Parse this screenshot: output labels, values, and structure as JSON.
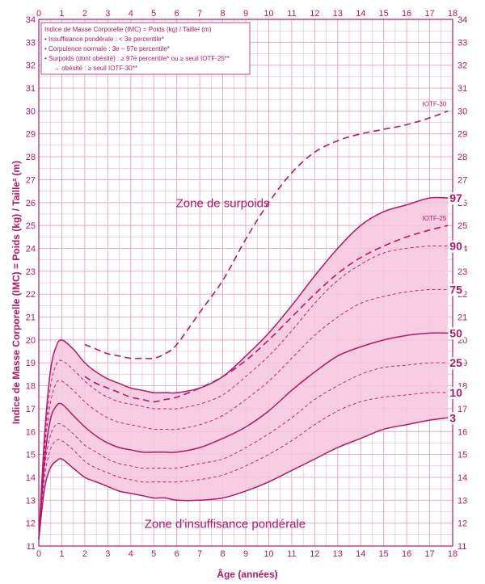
{
  "chart_data": {
    "type": "line",
    "xlabel": "Âge (années)",
    "ylabel": "Indice de Masse Corporelle (IMC) = Poids (kg) / Taille² (m)",
    "xlim": [
      0,
      18
    ],
    "ylim": [
      11,
      34
    ],
    "x_ticks": [
      0,
      1,
      2,
      3,
      4,
      5,
      6,
      7,
      8,
      9,
      10,
      11,
      12,
      13,
      14,
      15,
      16,
      17,
      18
    ],
    "y_ticks": [
      11,
      12,
      13,
      14,
      15,
      16,
      17,
      18,
      19,
      20,
      21,
      22,
      23,
      24,
      25,
      26,
      27,
      28,
      29,
      30,
      31,
      32,
      33,
      34
    ],
    "legend": {
      "placement": "top-left",
      "lines": [
        "Indice de Masse Corporelle (IMC) = Poids (kg) / Taille² (m)",
        "• Insuffisance pondérale : < 3e percentile*",
        "• Corpulence normale : 3e – 97e percentile*",
        "• Surpoids (dont obésité) : ≥ 97e percentile* ou ≥ seuil IOTF-25**",
        "→ obésité : ≥ seuil IOTF-30**"
      ]
    },
    "zones": [
      {
        "label": "Zone de surpoids",
        "x": 8,
        "y": 25.8
      },
      {
        "label": "Zone d'insuffisance pondérale",
        "x": 8.1,
        "y": 11.8
      }
    ],
    "colors": {
      "line": "#b0186b",
      "band": "#f7cde2",
      "grid": "#e3a5c8",
      "background": "#ffffff"
    },
    "series": [
      {
        "name": "97",
        "style": "solid",
        "x": [
          0,
          0.25,
          0.5,
          0.75,
          1,
          1.5,
          2,
          2.5,
          3,
          3.5,
          4,
          4.5,
          5,
          5.5,
          6,
          7,
          8,
          9,
          10,
          11,
          12,
          13,
          14,
          15,
          16,
          17,
          17.8
        ],
        "values": [
          11.3,
          15.8,
          18.6,
          19.7,
          20,
          19.6,
          19,
          18.6,
          18.3,
          18.1,
          17.9,
          17.8,
          17.7,
          17.7,
          17.7,
          17.9,
          18.4,
          19.3,
          20.3,
          21.5,
          22.8,
          24,
          25,
          25.6,
          25.9,
          26.2,
          26.2
        ]
      },
      {
        "name": "90",
        "style": "dashed",
        "x": [
          0,
          0.25,
          0.5,
          0.75,
          1,
          1.5,
          2,
          2.5,
          3,
          3.5,
          4,
          4.5,
          5,
          5.5,
          6,
          7,
          8,
          9,
          10,
          11,
          12,
          13,
          14,
          15,
          16,
          17,
          17.8
        ],
        "values": [
          11.3,
          15.4,
          17.9,
          18.9,
          19.1,
          18.7,
          18.2,
          17.8,
          17.5,
          17.3,
          17.2,
          17.1,
          17,
          17,
          17,
          17.2,
          17.6,
          18.4,
          19.3,
          20.4,
          21.6,
          22.6,
          23.3,
          23.8,
          24,
          24.1,
          24.1
        ]
      },
      {
        "name": "75",
        "style": "dashed",
        "x": [
          0,
          0.25,
          0.5,
          0.75,
          1,
          1.5,
          2,
          2.5,
          3,
          3.5,
          4,
          4.5,
          5,
          5.5,
          6,
          7,
          8,
          9,
          10,
          11,
          12,
          13,
          14,
          15,
          16,
          17,
          17.8
        ],
        "values": [
          11.3,
          15.1,
          17.2,
          18.1,
          18.2,
          17.8,
          17.3,
          16.9,
          16.6,
          16.4,
          16.3,
          16.2,
          16.1,
          16.1,
          16.1,
          16.3,
          16.7,
          17.4,
          18.2,
          19.2,
          20.2,
          21,
          21.6,
          21.9,
          22.1,
          22.2,
          22.2
        ]
      },
      {
        "name": "50",
        "style": "solid",
        "x": [
          0,
          0.25,
          0.5,
          0.75,
          1,
          1.5,
          2,
          2.5,
          3,
          3.5,
          4,
          4.5,
          5,
          5.5,
          6,
          7,
          8,
          9,
          10,
          11,
          12,
          13,
          14,
          15,
          16,
          17,
          17.8
        ],
        "values": [
          11.3,
          14.7,
          16.5,
          17.1,
          17.2,
          16.7,
          16.2,
          15.8,
          15.5,
          15.3,
          15.2,
          15.1,
          15.1,
          15.1,
          15.1,
          15.3,
          15.7,
          16.2,
          16.9,
          17.8,
          18.6,
          19.3,
          19.7,
          20,
          20.2,
          20.3,
          20.3
        ]
      },
      {
        "name": "25",
        "style": "dashed",
        "x": [
          0,
          0.25,
          0.5,
          0.75,
          1,
          1.5,
          2,
          2.5,
          3,
          3.5,
          4,
          4.5,
          5,
          5.5,
          6,
          7,
          8,
          9,
          10,
          11,
          12,
          13,
          14,
          15,
          16,
          17,
          17.8
        ],
        "values": [
          11.3,
          14.4,
          15.8,
          16.3,
          16.3,
          15.9,
          15.4,
          15.1,
          14.8,
          14.6,
          14.5,
          14.4,
          14.4,
          14.4,
          14.4,
          14.6,
          14.8,
          15.3,
          15.9,
          16.6,
          17.4,
          18,
          18.5,
          18.8,
          18.9,
          19,
          19
        ]
      },
      {
        "name": "10",
        "style": "dashed",
        "x": [
          0,
          0.25,
          0.5,
          0.75,
          1,
          1.5,
          2,
          2.5,
          3,
          3.5,
          4,
          4.5,
          5,
          5.5,
          6,
          7,
          8,
          9,
          10,
          11,
          12,
          13,
          14,
          15,
          16,
          17,
          17.8
        ],
        "values": [
          11.3,
          14,
          15.2,
          15.6,
          15.6,
          15.2,
          14.7,
          14.4,
          14.2,
          14,
          13.9,
          13.8,
          13.8,
          13.8,
          13.8,
          13.9,
          14.1,
          14.5,
          15,
          15.6,
          16.3,
          16.9,
          17.3,
          17.5,
          17.6,
          17.7,
          17.7
        ]
      },
      {
        "name": "3",
        "style": "solid",
        "x": [
          0,
          0.25,
          0.5,
          0.75,
          1,
          1.5,
          2,
          2.5,
          3,
          3.5,
          4,
          4.5,
          5,
          5.5,
          6,
          7,
          8,
          9,
          10,
          11,
          12,
          13,
          14,
          15,
          16,
          17,
          17.8
        ],
        "values": [
          11.3,
          13.5,
          14.4,
          14.7,
          14.8,
          14.4,
          14,
          13.8,
          13.6,
          13.4,
          13.3,
          13.2,
          13.1,
          13.1,
          13,
          13,
          13.1,
          13.4,
          13.8,
          14.3,
          14.8,
          15.3,
          15.7,
          16.1,
          16.3,
          16.5,
          16.6
        ]
      },
      {
        "name": "IOTF-25",
        "style": "long-dash",
        "x": [
          2,
          2.5,
          3,
          3.5,
          4,
          4.5,
          5,
          5.5,
          6,
          7,
          8,
          9,
          10,
          11,
          12,
          13,
          14,
          15,
          16,
          17,
          17.8
        ],
        "values": [
          18.4,
          18.1,
          17.9,
          17.7,
          17.5,
          17.4,
          17.3,
          17.4,
          17.5,
          17.9,
          18.4,
          19.1,
          20,
          21,
          22,
          22.9,
          23.6,
          24.1,
          24.5,
          24.8,
          25
        ]
      },
      {
        "name": "IOTF-30",
        "style": "long-dash",
        "x": [
          2,
          2.5,
          3,
          3.5,
          4,
          4.5,
          5,
          5.5,
          6,
          7,
          8,
          9,
          10,
          11,
          12,
          13,
          14,
          15,
          16,
          17,
          17.8
        ],
        "values": [
          19.8,
          19.6,
          19.4,
          19.3,
          19.2,
          19.2,
          19.2,
          19.4,
          19.8,
          21.2,
          22.6,
          24.4,
          26,
          27.3,
          28.2,
          28.7,
          29,
          29.2,
          29.4,
          29.7,
          30
        ]
      }
    ]
  }
}
